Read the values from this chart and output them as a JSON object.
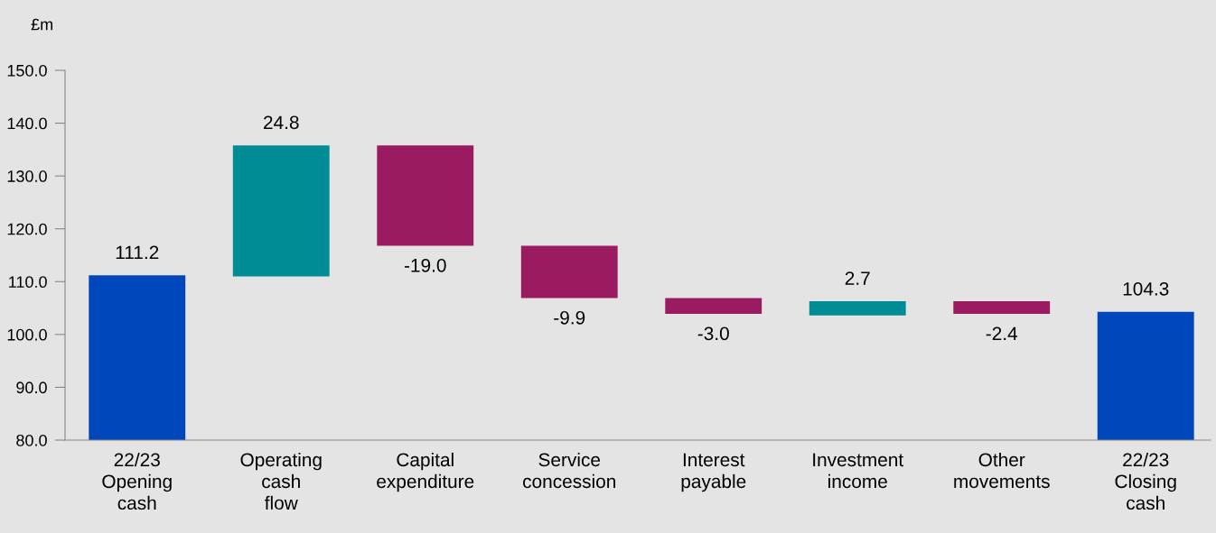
{
  "chart_data": {
    "type": "bar",
    "ylabel": "£m",
    "categories": [
      "22/23\nOpening\ncash",
      "Operating\ncash\nflow",
      "Capital\nexpenditure",
      "Service\nconcession",
      "Interest\npayable",
      "Investment\nincome",
      "Other\nmovements",
      "22/23\nClosing\ncash"
    ],
    "values": [
      111.2,
      24.8,
      -19.0,
      -9.9,
      -3.0,
      2.7,
      -2.4,
      104.3
    ],
    "base": [
      null,
      111.0,
      135.8,
      116.8,
      106.9,
      103.6,
      106.3,
      null
    ],
    "colors": [
      "#0047bb",
      "#008c95",
      "#9b1b60",
      "#9b1b60",
      "#9b1b60",
      "#008c95",
      "#9b1b60",
      "#0047bb"
    ],
    "value_labels": [
      "111.2",
      "24.8",
      "-19.0",
      "-9.9",
      "-3.0",
      "2.7",
      "-2.4",
      "104.3"
    ],
    "ylim": [
      80,
      150
    ],
    "yticks": [
      {
        "value": 80,
        "label": "80.0"
      },
      {
        "value": 90,
        "label": "90.0"
      },
      {
        "value": 100,
        "label": "100.0"
      },
      {
        "value": 110,
        "label": "110.0"
      },
      {
        "value": 120,
        "label": "120.0"
      },
      {
        "value": 130,
        "label": "130.0"
      },
      {
        "value": 140,
        "label": "140.0"
      },
      {
        "value": 150,
        "label": "150.0"
      }
    ],
    "grid": false,
    "legend": false
  }
}
